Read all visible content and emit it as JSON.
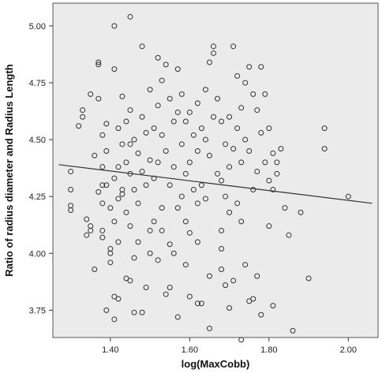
{
  "chart_data": {
    "type": "scatter",
    "xlabel": "log(MaxCobb)",
    "ylabel": "Ratio of radius diameter and Radius Length",
    "xlim": [
      1.255,
      2.075
    ],
    "ylim": [
      3.63,
      5.1
    ],
    "x_ticks": [
      1.4,
      1.6,
      1.8,
      2.0
    ],
    "x_tick_labels": [
      "1.40",
      "1.60",
      "1.80",
      "2.00"
    ],
    "y_ticks": [
      3.75,
      4.0,
      4.25,
      4.5,
      4.75,
      5.0
    ],
    "y_tick_labels": [
      "3.75",
      "4.00",
      "4.25",
      "4.50",
      "4.75",
      "5.00"
    ],
    "grid": false,
    "plot_background": "#ebebeb",
    "marker_color": "#333333",
    "fit_line": {
      "type": "linear",
      "from": [
        1.27,
        4.39
      ],
      "to": [
        2.06,
        4.22
      ],
      "color": "#333333"
    },
    "x": [
      1.3,
      1.3,
      1.3,
      1.3,
      1.32,
      1.33,
      1.34,
      1.34,
      1.35,
      1.35,
      1.36,
      1.37,
      1.37,
      1.37,
      1.37,
      1.38,
      1.38,
      1.38,
      1.38,
      1.38,
      1.39,
      1.39,
      1.39,
      1.4,
      1.4,
      1.4,
      1.41,
      1.41,
      1.41,
      1.41,
      1.41,
      1.42,
      1.42,
      1.42,
      1.42,
      1.43,
      1.43,
      1.43,
      1.44,
      1.44,
      1.44,
      1.45,
      1.45,
      1.45,
      1.45,
      1.45,
      1.45,
      1.46,
      1.46,
      1.46,
      1.47,
      1.47,
      1.48,
      1.48,
      1.48,
      1.49,
      1.49,
      1.5,
      1.5,
      1.5,
      1.51,
      1.51,
      1.51,
      1.52,
      1.52,
      1.52,
      1.53,
      1.53,
      1.53,
      1.54,
      1.54,
      1.55,
      1.55,
      1.55,
      1.56,
      1.56,
      1.57,
      1.57,
      1.57,
      1.58,
      1.58,
      1.58,
      1.59,
      1.59,
      1.59,
      1.6,
      1.6,
      1.6,
      1.61,
      1.61,
      1.62,
      1.62,
      1.62,
      1.63,
      1.63,
      1.64,
      1.64,
      1.64,
      1.65,
      1.65,
      1.66,
      1.66,
      1.66,
      1.67,
      1.67,
      1.68,
      1.68,
      1.68,
      1.69,
      1.69,
      1.7,
      1.7,
      1.7,
      1.71,
      1.71,
      1.72,
      1.72,
      1.72,
      1.73,
      1.73,
      1.73,
      1.74,
      1.74,
      1.75,
      1.75,
      1.76,
      1.76,
      1.77,
      1.77,
      1.78,
      1.78,
      1.79,
      1.79,
      1.8,
      1.8,
      1.81,
      1.81,
      1.82,
      1.82,
      1.83,
      1.84,
      1.85,
      1.86,
      1.88,
      1.9,
      1.94,
      1.94,
      2.0,
      1.33,
      1.35,
      1.38,
      1.4,
      1.43,
      1.47,
      1.5,
      1.53,
      1.56,
      1.59,
      1.62,
      1.65,
      1.68,
      1.71,
      1.74,
      1.77,
      1.8,
      1.36,
      1.44,
      1.52,
      1.6,
      1.68,
      1.76,
      1.41,
      1.49,
      1.57,
      1.65,
      1.73,
      1.39,
      1.46,
      1.54,
      1.62,
      1.7,
      1.78,
      1.42,
      1.48,
      1.55,
      1.63,
      1.69,
      1.75,
      1.81
    ],
    "y": [
      4.36,
      4.28,
      4.21,
      4.19,
      4.56,
      4.63,
      4.15,
      4.08,
      4.7,
      4.12,
      4.43,
      4.84,
      4.83,
      4.68,
      4.27,
      4.52,
      4.38,
      4.22,
      4.1,
      4.07,
      4.57,
      4.45,
      4.3,
      4.2,
      4.02,
      3.96,
      5.0,
      4.81,
      4.33,
      4.14,
      3.81,
      4.55,
      4.38,
      4.24,
      4.05,
      4.69,
      4.48,
      4.26,
      4.58,
      4.4,
      4.18,
      5.04,
      4.63,
      4.48,
      4.35,
      4.12,
      3.88,
      4.5,
      4.28,
      3.98,
      4.44,
      4.22,
      4.91,
      4.6,
      4.36,
      4.53,
      4.3,
      4.72,
      4.41,
      4.1,
      4.55,
      4.33,
      4.14,
      4.86,
      4.65,
      4.4,
      4.76,
      4.52,
      4.2,
      4.83,
      4.45,
      4.68,
      4.3,
      4.04,
      4.58,
      4.38,
      4.81,
      4.62,
      4.2,
      4.7,
      4.48,
      4.25,
      4.58,
      4.35,
      4.14,
      4.62,
      4.4,
      4.09,
      4.52,
      4.28,
      4.66,
      4.45,
      4.22,
      4.55,
      4.3,
      4.72,
      4.5,
      4.24,
      4.84,
      4.43,
      4.91,
      4.88,
      4.6,
      4.68,
      4.35,
      4.58,
      4.32,
      4.1,
      4.48,
      4.25,
      4.6,
      4.38,
      4.18,
      4.91,
      4.46,
      4.78,
      4.55,
      4.22,
      4.64,
      4.4,
      4.14,
      4.75,
      4.5,
      4.82,
      4.45,
      4.7,
      4.28,
      4.63,
      4.36,
      4.82,
      4.53,
      4.7,
      4.4,
      4.55,
      4.32,
      4.44,
      4.28,
      4.4,
      4.35,
      4.46,
      4.2,
      4.08,
      3.66,
      4.18,
      3.89,
      4.55,
      4.46,
      4.25,
      4.6,
      4.1,
      4.3,
      4.0,
      4.28,
      4.05,
      4.0,
      4.1,
      4.0,
      3.95,
      4.05,
      3.9,
      4.02,
      3.88,
      3.95,
      3.9,
      4.12,
      3.93,
      3.89,
      3.97,
      3.81,
      3.93,
      3.8,
      3.71,
      3.85,
      3.72,
      3.67,
      3.62,
      3.75,
      3.74,
      3.82,
      3.78,
      3.76,
      3.73,
      3.8,
      3.74,
      3.85,
      3.78,
      3.86,
      3.79,
      3.77
    ]
  }
}
